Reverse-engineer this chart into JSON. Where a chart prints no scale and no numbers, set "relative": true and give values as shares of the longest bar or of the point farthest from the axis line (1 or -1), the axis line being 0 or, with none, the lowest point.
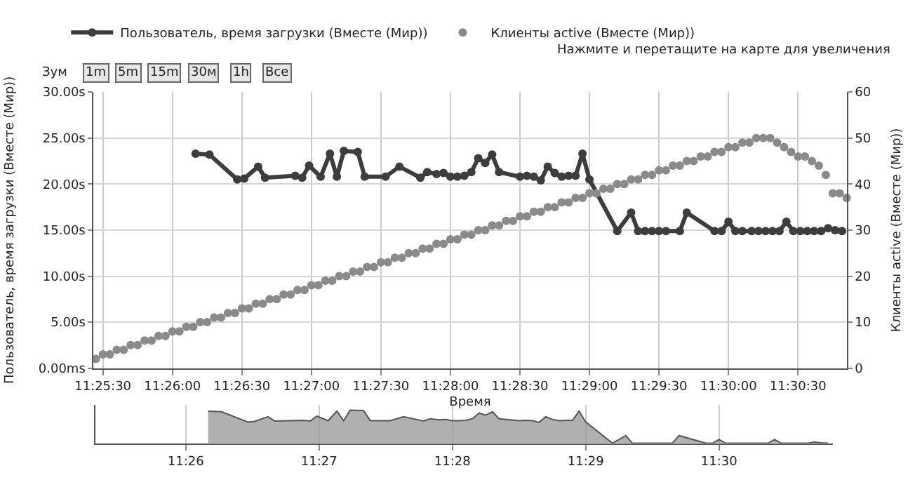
{
  "chart_data": [
    {
      "type": "line",
      "xlabel": "Время",
      "ylabel": "Пользователь, время загрузки (Вместе (Мир))",
      "y2label": "Клиенты active (Вместе (Мир))",
      "annotations": [
        "Нажмите и перетащите на карте для увеличения",
        "Зум",
        "1m",
        "5m",
        "15m",
        "30м",
        "1h",
        "Все"
      ],
      "xlim": [
        11.423889,
        11.514167
      ],
      "xticks": [
        {
          "value": 11.425,
          "label": "11:25:30"
        },
        {
          "value": 11.433333,
          "label": "11:26:00"
        },
        {
          "value": 11.441667,
          "label": "11:26:30"
        },
        {
          "value": 11.45,
          "label": "11:27:00"
        },
        {
          "value": 11.458333,
          "label": "11:27:30"
        },
        {
          "value": 11.466667,
          "label": "11:28:00"
        },
        {
          "value": 11.475,
          "label": "11:28:30"
        },
        {
          "value": 11.483333,
          "label": "11:29:00"
        },
        {
          "value": 11.491667,
          "label": "11:29:30"
        },
        {
          "value": 11.5,
          "label": "11:30:00"
        },
        {
          "value": 11.508333,
          "label": "11:30:30"
        }
      ],
      "ylim": [
        0,
        30
      ],
      "yticks": [
        {
          "value": 0,
          "label": "0.00ms"
        },
        {
          "value": 5,
          "label": "5.00s"
        },
        {
          "value": 10,
          "label": "10.00s"
        },
        {
          "value": 15,
          "label": "15.00s"
        },
        {
          "value": 20,
          "label": "20.00s"
        },
        {
          "value": 25,
          "label": "25.00s"
        },
        {
          "value": 30,
          "label": "30.00s"
        }
      ],
      "y2lim": [
        0,
        60
      ],
      "y2ticks": [
        0,
        10,
        20,
        30,
        40,
        50,
        60
      ],
      "grid": true,
      "legend": "top left",
      "marker": "circle",
      "line_style": "solid",
      "series": [
        {
          "name": "Пользователь, время загрузки (Вместе (Мир))",
          "type": "line",
          "color": "#3d3d3d",
          "x": [
            11.436111,
            11.437778,
            11.441111,
            11.441944,
            11.443611,
            11.444444,
            11.448056,
            11.448889,
            11.449722,
            11.451111,
            11.452222,
            11.453056,
            11.453889,
            11.455556,
            11.456389,
            11.458889,
            11.460556,
            11.463056,
            11.463889,
            11.465,
            11.465833,
            11.466667,
            11.4675,
            11.468333,
            11.469167,
            11.47,
            11.470833,
            11.471667,
            11.4725,
            11.475,
            11.475833,
            11.476667,
            11.4775,
            11.478333,
            11.479167,
            11.48,
            11.480833,
            11.481667,
            11.4825,
            11.483333,
            11.486667,
            11.488333,
            11.489167,
            11.49,
            11.490833,
            11.491667,
            11.4925,
            11.494167,
            11.495,
            11.498333,
            11.499167,
            11.5,
            11.500833,
            11.501667,
            11.502778,
            11.503611,
            11.504444,
            11.505278,
            11.506111,
            11.506944,
            11.507778,
            11.508611,
            11.509444,
            11.510278,
            11.511111,
            11.511944,
            11.512778,
            11.513611
          ],
          "values": [
            23.3,
            23.2,
            20.5,
            20.6,
            21.9,
            20.7,
            20.9,
            20.7,
            22.0,
            20.8,
            23.3,
            20.8,
            23.6,
            23.5,
            20.8,
            20.8,
            21.9,
            20.7,
            21.3,
            21.1,
            21.2,
            20.8,
            20.8,
            20.9,
            21.3,
            22.8,
            22.3,
            23.2,
            21.3,
            20.8,
            20.9,
            20.8,
            20.4,
            21.9,
            21.2,
            20.8,
            20.9,
            20.9,
            23.3,
            20.5,
            14.9,
            16.9,
            14.9,
            14.9,
            14.9,
            14.9,
            14.9,
            14.9,
            16.9,
            14.9,
            14.9,
            15.9,
            14.9,
            14.9,
            14.9,
            14.9,
            14.9,
            14.9,
            14.9,
            15.9,
            14.9,
            14.9,
            14.9,
            14.9,
            14.9,
            15.2,
            15.0,
            14.9
          ]
        },
        {
          "name": "Клиенты active (Вместе (Мир))",
          "type": "scatter",
          "axis": "y2",
          "color": "#8a8a8a",
          "x": [
            11.424167,
            11.425,
            11.425833,
            11.426667,
            11.4275,
            11.428333,
            11.429167,
            11.43,
            11.430833,
            11.431667,
            11.4325,
            11.433333,
            11.434167,
            11.435,
            11.435833,
            11.436667,
            11.4375,
            11.438333,
            11.439167,
            11.44,
            11.440833,
            11.441667,
            11.4425,
            11.443333,
            11.444167,
            11.445,
            11.445833,
            11.446667,
            11.4475,
            11.448333,
            11.449167,
            11.45,
            11.450833,
            11.451667,
            11.4525,
            11.453333,
            11.454167,
            11.455,
            11.455833,
            11.456667,
            11.4575,
            11.458333,
            11.459167,
            11.46,
            11.460833,
            11.461667,
            11.4625,
            11.463333,
            11.464167,
            11.465,
            11.465833,
            11.466667,
            11.4675,
            11.468333,
            11.469167,
            11.47,
            11.470833,
            11.471667,
            11.4725,
            11.473333,
            11.474167,
            11.475,
            11.475833,
            11.476667,
            11.4775,
            11.478333,
            11.479167,
            11.48,
            11.480833,
            11.481667,
            11.4825,
            11.483333,
            11.484167,
            11.485,
            11.485833,
            11.486667,
            11.4875,
            11.488333,
            11.489167,
            11.49,
            11.490833,
            11.491667,
            11.4925,
            11.493333,
            11.494167,
            11.495,
            11.495833,
            11.496667,
            11.4975,
            11.498333,
            11.499167,
            11.5,
            11.500833,
            11.501667,
            11.5025,
            11.503333,
            11.504167,
            11.505,
            11.505833,
            11.506667,
            11.5075,
            11.508333,
            11.509167,
            11.51,
            11.510833,
            11.511667,
            11.5125,
            11.513333,
            11.514167
          ],
          "values": [
            2,
            3,
            3,
            4,
            4,
            5,
            5,
            6,
            6,
            7,
            7,
            8,
            8,
            9,
            9,
            10,
            10,
            11,
            11,
            12,
            12,
            13,
            13,
            14,
            14,
            15,
            15,
            16,
            16,
            17,
            17,
            18,
            18,
            19,
            19,
            20,
            20,
            21,
            21,
            22,
            22,
            23,
            23,
            24,
            24,
            25,
            25,
            26,
            26,
            27,
            27,
            28,
            28,
            29,
            29,
            30,
            30,
            31,
            31,
            32,
            32,
            33,
            33,
            34,
            34,
            35,
            35,
            36,
            36,
            37,
            37,
            38,
            38,
            39,
            39,
            40,
            40,
            41,
            41,
            42,
            42,
            43,
            43,
            44,
            44,
            45,
            45,
            46,
            46,
            47,
            47,
            48,
            48,
            49,
            49,
            50,
            50,
            50,
            49,
            48,
            47,
            46,
            46,
            45,
            44,
            42,
            38,
            38,
            37
          ]
        }
      ]
    },
    {
      "type": "area",
      "relative": true,
      "tick_labels": "x",
      "grid": "x",
      "xlim": [
        11.422,
        11.5142
      ],
      "xticks": [
        {
          "value": 11.433333,
          "label": "11:26"
        },
        {
          "value": 11.45,
          "label": "11:27"
        },
        {
          "value": 11.466667,
          "label": "11:28"
        },
        {
          "value": 11.483333,
          "label": "11:29"
        },
        {
          "value": 11.5,
          "label": "11:30"
        }
      ],
      "series": [
        {
          "color": "#9a9a9a",
          "x": [
            11.436111,
            11.437778,
            11.441111,
            11.441944,
            11.443611,
            11.444444,
            11.448056,
            11.448889,
            11.449722,
            11.451111,
            11.452222,
            11.453056,
            11.453889,
            11.455556,
            11.456389,
            11.458889,
            11.460556,
            11.463056,
            11.463889,
            11.465,
            11.465833,
            11.466667,
            11.4675,
            11.468333,
            11.469167,
            11.47,
            11.470833,
            11.471667,
            11.4725,
            11.475,
            11.475833,
            11.476667,
            11.4775,
            11.478333,
            11.479167,
            11.48,
            11.480833,
            11.481667,
            11.4825,
            11.483333,
            11.486667,
            11.488333,
            11.489167,
            11.49,
            11.490833,
            11.491667,
            11.4925,
            11.494167,
            11.495,
            11.498333,
            11.499167,
            11.5,
            11.500833,
            11.501667,
            11.502778,
            11.503611,
            11.504444,
            11.505278,
            11.506111,
            11.506944,
            11.507778,
            11.508611,
            11.509444,
            11.510278,
            11.511111,
            11.511944,
            11.512778,
            11.513611
          ],
          "values": [
            0.97,
            0.95,
            0.64,
            0.66,
            0.8,
            0.67,
            0.69,
            0.67,
            0.82,
            0.68,
            0.97,
            0.68,
            1,
            0.99,
            0.68,
            0.68,
            0.8,
            0.67,
            0.74,
            0.71,
            0.72,
            0.68,
            0.68,
            0.69,
            0.74,
            0.91,
            0.85,
            0.95,
            0.74,
            0.68,
            0.69,
            0.68,
            0.63,
            0.8,
            0.72,
            0.68,
            0.69,
            0.69,
            0.97,
            0.64,
            0,
            0.23,
            0,
            0,
            0,
            0,
            0,
            0,
            0.23,
            0,
            0,
            0.11,
            0,
            0,
            0,
            0,
            0,
            0,
            0,
            0.11,
            0,
            0,
            0,
            0,
            0,
            0.03,
            0.01,
            0
          ]
        }
      ]
    }
  ]
}
